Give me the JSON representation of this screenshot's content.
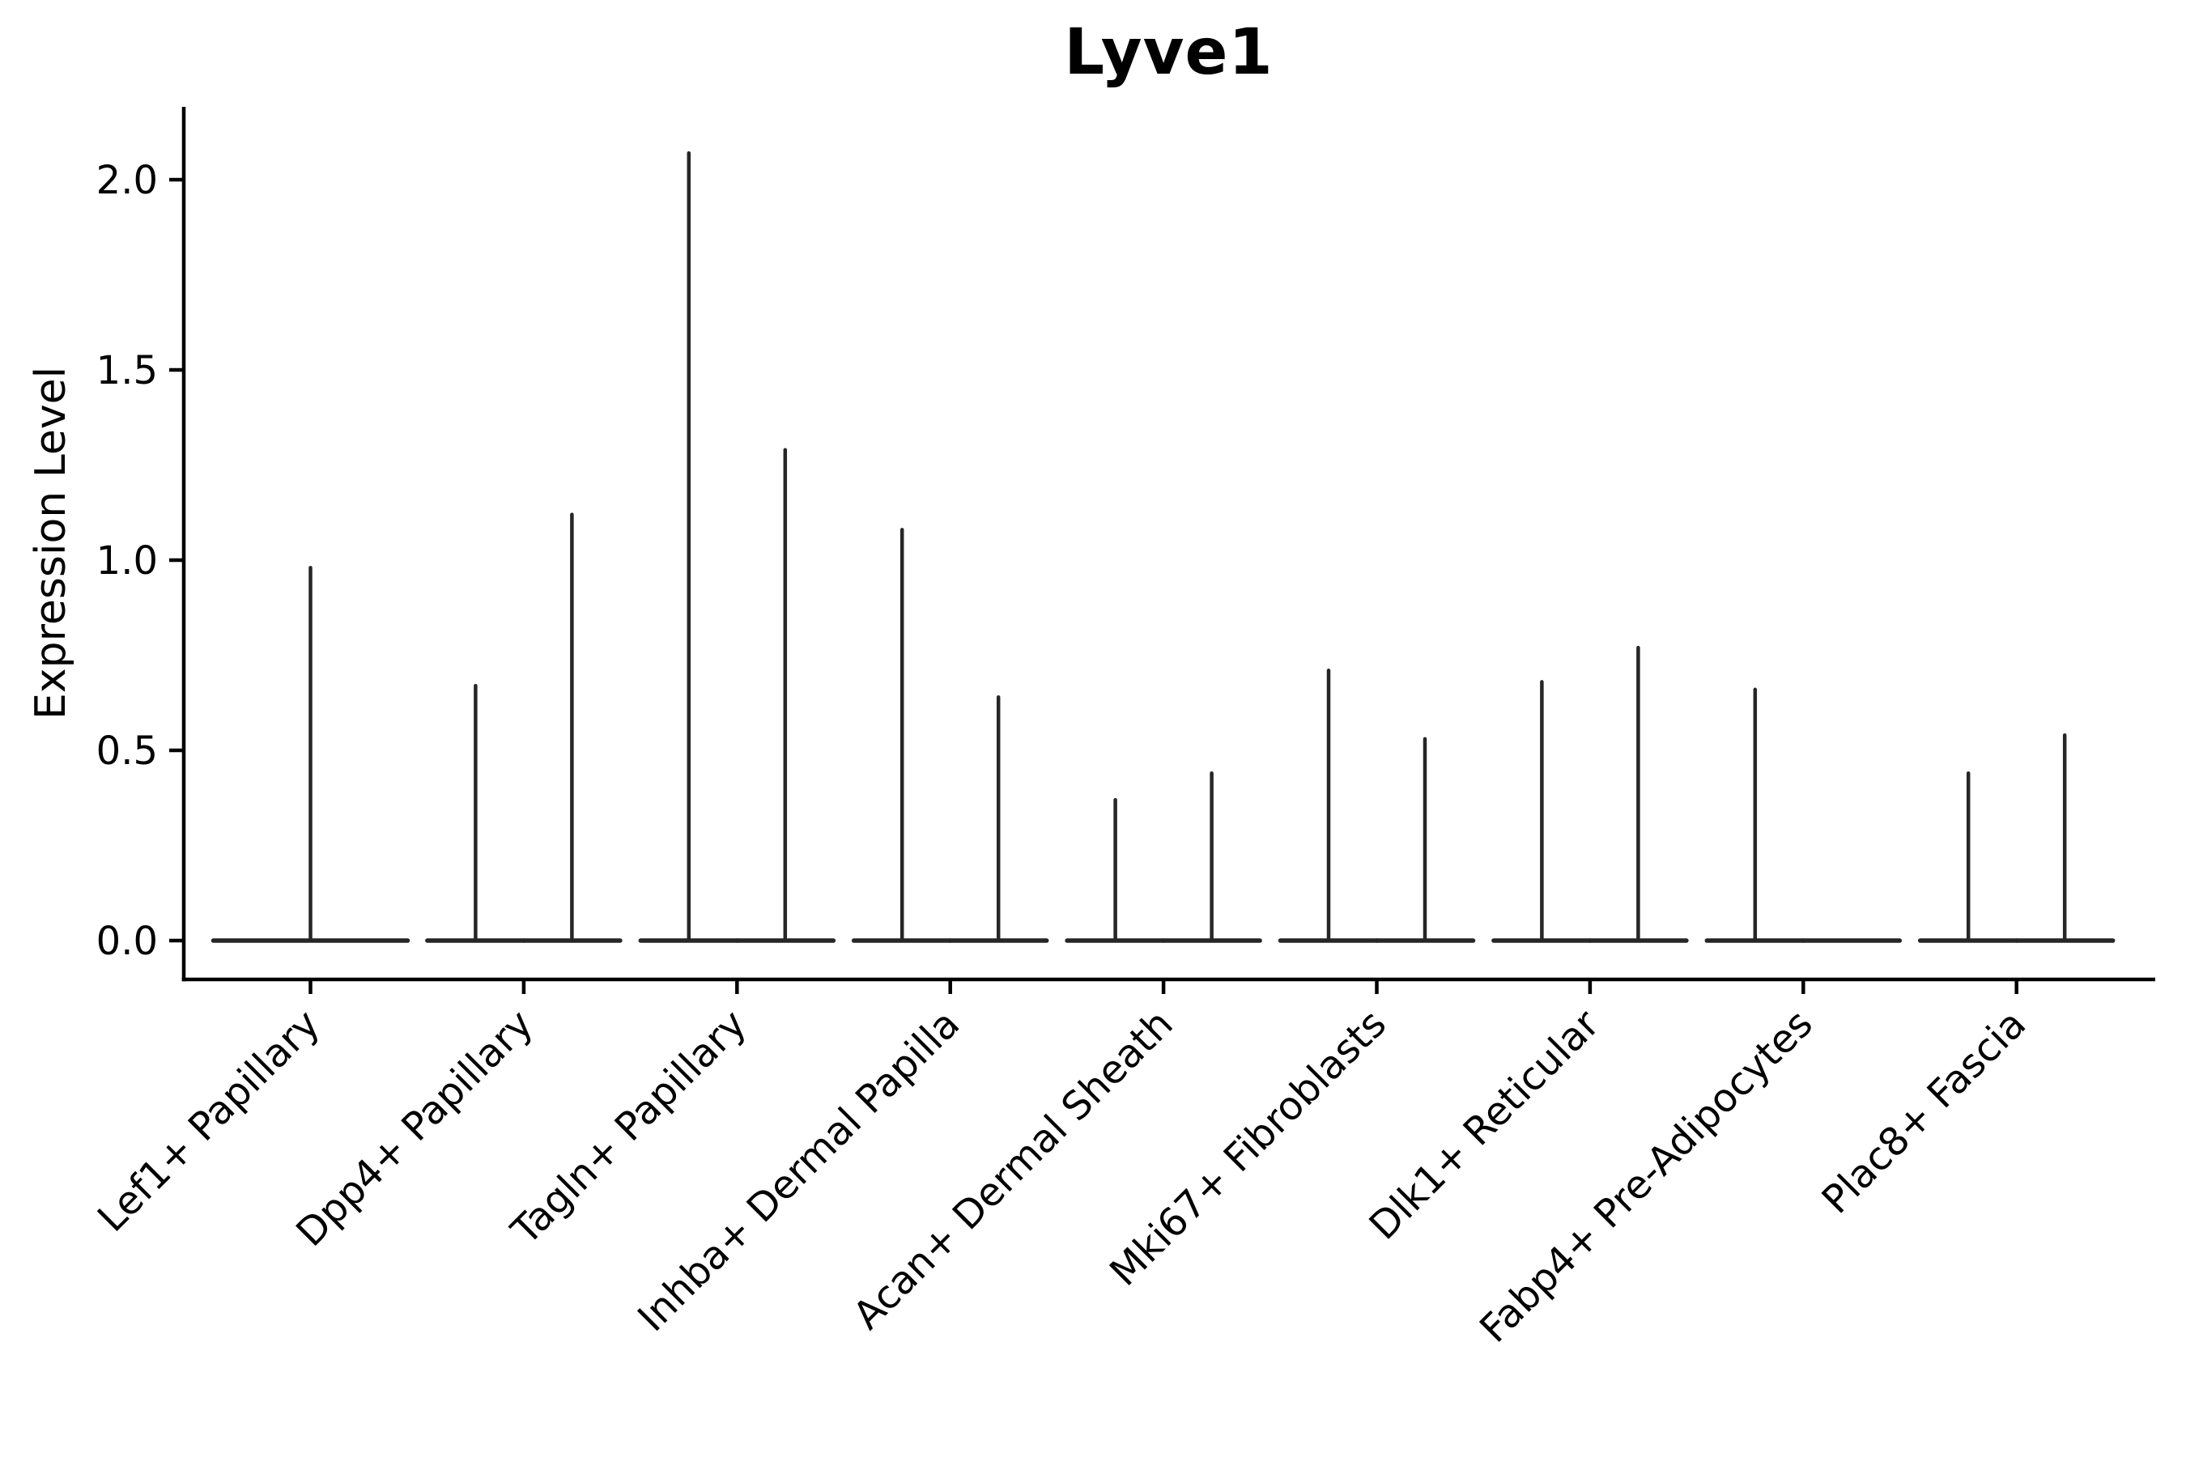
{
  "chart_data": {
    "type": "violin",
    "title": "Lyve1",
    "ylabel": "Expression Level",
    "xlabel": "",
    "grid": false,
    "legend": "none",
    "ylim": [
      -0.1,
      2.19
    ],
    "yticks": [
      {
        "label": "0.0",
        "value": 0.0
      },
      {
        "label": "0.5",
        "value": 0.5
      },
      {
        "label": "1.0",
        "value": 1.0
      },
      {
        "label": "1.5",
        "value": 1.5
      },
      {
        "label": "2.0",
        "value": 2.0
      }
    ],
    "description": "Violin plot of Lyve1 expression; each cell-type category shows violins collapsed to a flat base at 0 with a thin spike up to the maximum expression value.",
    "categories": [
      {
        "label": "Lef1+ Papillary",
        "violins": [
          {
            "pos": 0,
            "max": 0.98
          }
        ]
      },
      {
        "label": "Dpp4+ Papillary",
        "violins": [
          {
            "pos": -1,
            "max": 0.67
          },
          {
            "pos": 1,
            "max": 1.12
          }
        ]
      },
      {
        "label": "Tagln+ Papillary",
        "violins": [
          {
            "pos": -1,
            "max": 2.07
          },
          {
            "pos": 1,
            "max": 1.29
          }
        ]
      },
      {
        "label": "Inhba+ Dermal Papilla",
        "violins": [
          {
            "pos": -1,
            "max": 1.08
          },
          {
            "pos": 1,
            "max": 0.64
          }
        ]
      },
      {
        "label": "Acan+ Dermal Sheath",
        "violins": [
          {
            "pos": -1,
            "max": 0.37
          },
          {
            "pos": 1,
            "max": 0.44
          }
        ]
      },
      {
        "label": "Mki67+ Fibroblasts",
        "violins": [
          {
            "pos": -1,
            "max": 0.71
          },
          {
            "pos": 1,
            "max": 0.53
          }
        ]
      },
      {
        "label": "Dlk1+ Reticular",
        "violins": [
          {
            "pos": -1,
            "max": 0.68
          },
          {
            "pos": 1,
            "max": 0.77
          }
        ]
      },
      {
        "label": "Fabp4+ Pre-Adipocytes",
        "violins": [
          {
            "pos": -1,
            "max": 0.66
          },
          {
            "pos": 1,
            "max": 0.0
          }
        ]
      },
      {
        "label": "Plac8+ Fascia",
        "violins": [
          {
            "pos": -1,
            "max": 0.44
          },
          {
            "pos": 1,
            "max": 0.54
          }
        ]
      }
    ],
    "colors": {
      "violin_stroke": "#262626",
      "axis": "#000000",
      "text": "#000000",
      "background": "#ffffff"
    }
  }
}
